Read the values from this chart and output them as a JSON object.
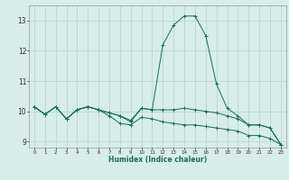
{
  "xlabel": "Humidex (Indice chaleur)",
  "background_color": "#d7ede8",
  "line_color": "#1a6b5a",
  "grid_color": "#b0d4cc",
  "xlim": [
    -0.5,
    23.5
  ],
  "ylim": [
    8.8,
    13.5
  ],
  "yticks": [
    9,
    10,
    11,
    12,
    13
  ],
  "xticks": [
    0,
    1,
    2,
    3,
    4,
    5,
    6,
    7,
    8,
    9,
    10,
    11,
    12,
    13,
    14,
    15,
    16,
    17,
    18,
    19,
    20,
    21,
    22,
    23
  ],
  "series": [
    {
      "x": [
        0,
        1,
        2,
        3,
        4,
        5,
        6,
        7,
        8,
        9,
        10,
        11,
        12,
        13,
        14,
        15,
        16,
        17,
        18,
        19,
        20,
        21,
        22,
        23
      ],
      "y": [
        10.15,
        9.9,
        10.15,
        9.75,
        10.05,
        10.15,
        10.05,
        9.95,
        9.85,
        9.7,
        10.1,
        10.05,
        12.2,
        12.85,
        13.15,
        13.15,
        12.5,
        10.9,
        10.1,
        9.85,
        9.55,
        9.55,
        9.45,
        8.9
      ]
    },
    {
      "x": [
        0,
        1,
        2,
        3,
        4,
        5,
        6,
        7,
        8,
        9,
        10,
        11,
        12,
        13,
        14,
        15,
        16,
        17,
        18,
        19,
        20,
        21,
        22,
        23
      ],
      "y": [
        10.15,
        9.9,
        10.15,
        9.75,
        10.05,
        10.15,
        10.05,
        9.95,
        9.85,
        9.65,
        10.1,
        10.05,
        10.05,
        10.05,
        10.1,
        10.05,
        10.0,
        9.95,
        9.85,
        9.75,
        9.55,
        9.55,
        9.45,
        8.9
      ]
    },
    {
      "x": [
        0,
        1,
        2,
        3,
        4,
        5,
        6,
        7,
        8,
        9,
        10,
        11,
        12,
        13,
        14,
        15,
        16,
        17,
        18,
        19,
        20,
        21,
        22,
        23
      ],
      "y": [
        10.15,
        9.9,
        10.15,
        9.75,
        10.05,
        10.15,
        10.05,
        9.85,
        9.6,
        9.55,
        9.8,
        9.75,
        9.65,
        9.6,
        9.55,
        9.55,
        9.5,
        9.45,
        9.4,
        9.35,
        9.2,
        9.2,
        9.1,
        8.9
      ]
    }
  ]
}
